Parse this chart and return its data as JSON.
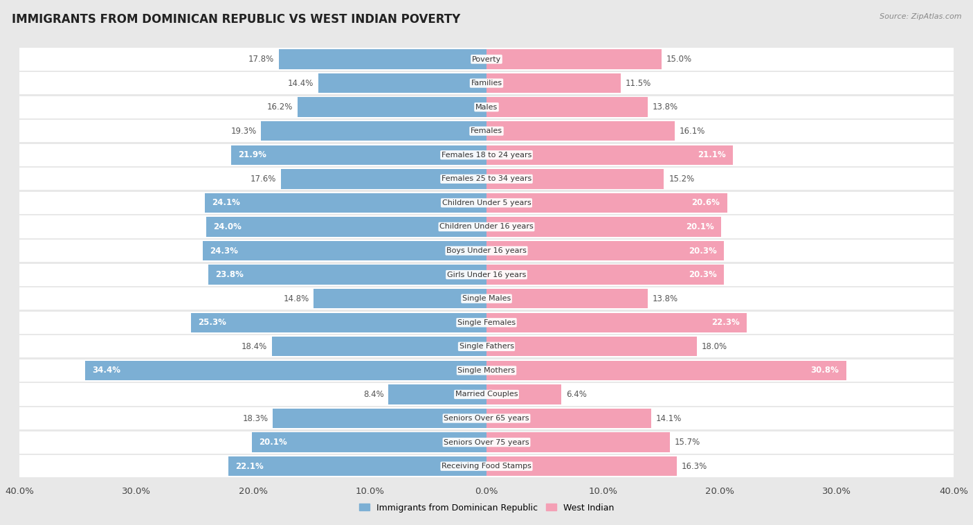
{
  "title": "IMMIGRANTS FROM DOMINICAN REPUBLIC VS WEST INDIAN POVERTY",
  "source": "Source: ZipAtlas.com",
  "categories": [
    "Poverty",
    "Families",
    "Males",
    "Females",
    "Females 18 to 24 years",
    "Females 25 to 34 years",
    "Children Under 5 years",
    "Children Under 16 years",
    "Boys Under 16 years",
    "Girls Under 16 years",
    "Single Males",
    "Single Females",
    "Single Fathers",
    "Single Mothers",
    "Married Couples",
    "Seniors Over 65 years",
    "Seniors Over 75 years",
    "Receiving Food Stamps"
  ],
  "dominican": [
    17.8,
    14.4,
    16.2,
    19.3,
    21.9,
    17.6,
    24.1,
    24.0,
    24.3,
    23.8,
    14.8,
    25.3,
    18.4,
    34.4,
    8.4,
    18.3,
    20.1,
    22.1
  ],
  "west_indian": [
    15.0,
    11.5,
    13.8,
    16.1,
    21.1,
    15.2,
    20.6,
    20.1,
    20.3,
    20.3,
    13.8,
    22.3,
    18.0,
    30.8,
    6.4,
    14.1,
    15.7,
    16.3
  ],
  "dominican_color": "#7cafd4",
  "west_indian_color": "#f4a0b5",
  "dominican_label": "Immigrants from Dominican Republic",
  "west_indian_label": "West Indian",
  "xlim": 40.0,
  "background_color": "#e8e8e8",
  "bar_background": "#ffffff",
  "title_fontsize": 12,
  "axis_fontsize": 9.5,
  "label_fontsize": 8.5,
  "inside_label_threshold": 20.0
}
